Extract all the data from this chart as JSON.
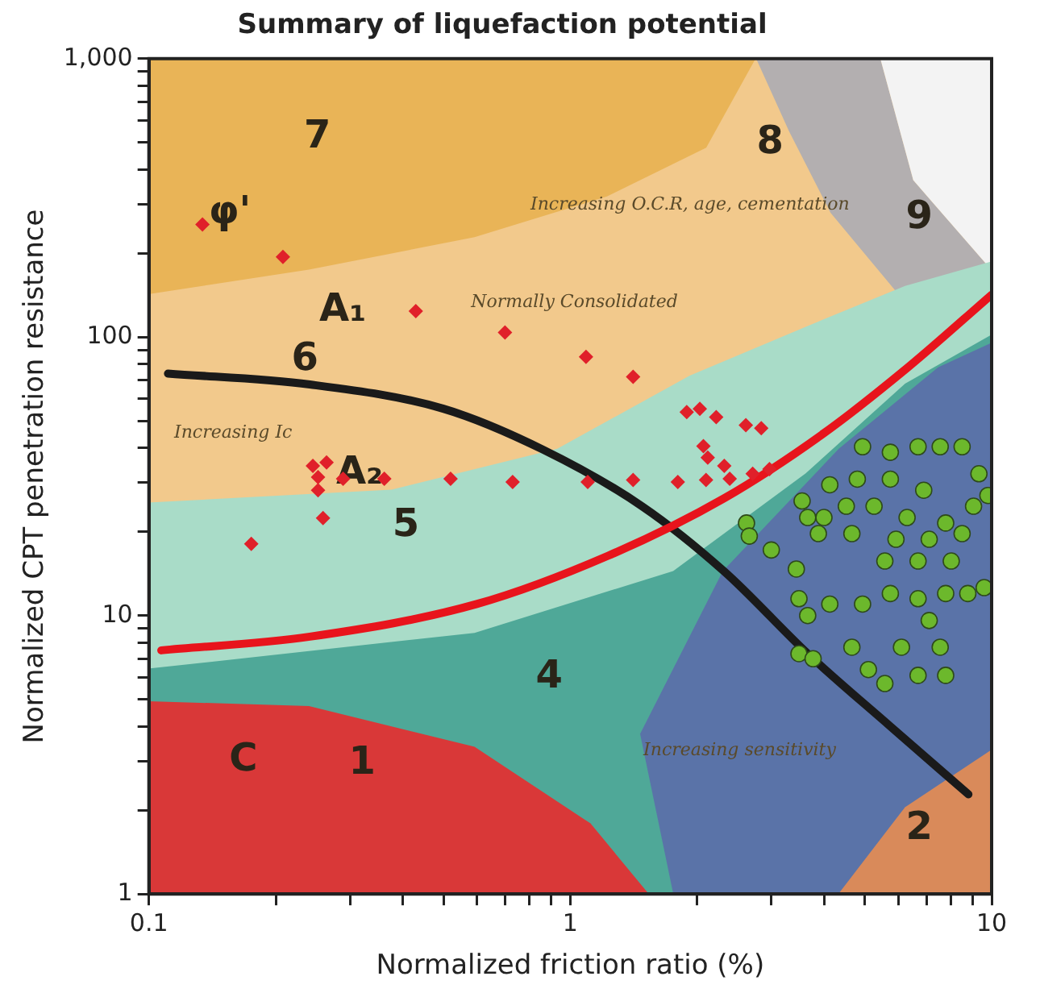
{
  "chart_data": {
    "type": "scatter",
    "title": "Summary of liquefaction potential",
    "xlabel": "Normalized friction ratio (%)",
    "ylabel": "Normalized CPT penetration resistance",
    "log": "xy",
    "xlim": [
      0.1,
      10
    ],
    "ylim": [
      1,
      1000
    ],
    "xticks": [
      0.1,
      {
        "value": 0.2,
        "label": null
      },
      {
        "value": 0.3,
        "label": null
      },
      {
        "value": 0.4,
        "label": null
      },
      {
        "value": 0.5,
        "label": null
      },
      {
        "value": 0.6,
        "label": null
      },
      {
        "value": 0.7,
        "label": null
      },
      {
        "value": 0.8,
        "label": null
      },
      {
        "value": 0.9,
        "label": null
      },
      1,
      {
        "value": 2,
        "label": null
      },
      {
        "value": 3,
        "label": null
      },
      {
        "value": 4,
        "label": null
      },
      {
        "value": 5,
        "label": null
      },
      {
        "value": 6,
        "label": null
      },
      {
        "value": 7,
        "label": null
      },
      {
        "value": 8,
        "label": null
      },
      {
        "value": 9,
        "label": null
      },
      10
    ],
    "yticks": [
      1,
      {
        "value": 2,
        "label": null
      },
      {
        "value": 3,
        "label": null
      },
      {
        "value": 4,
        "label": null
      },
      {
        "value": 5,
        "label": null
      },
      {
        "value": 6,
        "label": null
      },
      {
        "value": 7,
        "label": null
      },
      {
        "value": 8,
        "label": null
      },
      {
        "value": 9,
        "label": null
      },
      10,
      {
        "value": 20,
        "label": null
      },
      {
        "value": 30,
        "label": null
      },
      {
        "value": 40,
        "label": null
      },
      {
        "value": 50,
        "label": null
      },
      {
        "value": 60,
        "label": null
      },
      {
        "value": 70,
        "label": null
      },
      {
        "value": 80,
        "label": null
      },
      {
        "value": 90,
        "label": null
      },
      100,
      {
        "value": 200,
        "label": null
      },
      {
        "value": 300,
        "label": null
      },
      {
        "value": 400,
        "label": null
      },
      {
        "value": 500,
        "label": null
      },
      {
        "value": 600,
        "label": null
      },
      {
        "value": 700,
        "label": null
      },
      {
        "value": 800,
        "label": null
      },
      {
        "value": 900,
        "label": null
      },
      {
        "value": 1000,
        "label": "1,000"
      }
    ],
    "grid": false,
    "legend": false,
    "series": [
      {
        "type": "line",
        "color": "#1a1a1a",
        "marker": "none",
        "line_style": "solid",
        "x": [
          0.111,
          0.241,
          0.5,
          0.86,
          1.48,
          2.32,
          3.66,
          5.75,
          8.81
        ],
        "values": [
          74,
          67.6,
          55.3,
          39.5,
          24.7,
          14.4,
          7.3,
          4.0,
          2.28
        ]
      },
      {
        "type": "scatter",
        "color": "#6cb82c",
        "marker": "circle",
        "x": [
          2.62,
          2.66,
          3.0,
          3.44,
          3.49,
          3.66,
          3.49,
          3.77,
          5.1,
          5.58,
          6.69,
          7.78,
          7.11,
          7.55,
          8.78,
          9.6,
          8.02,
          6.69,
          5.58,
          4.66,
          3.88,
          3.55,
          4.13,
          4.94,
          5.75,
          6.69,
          7.55,
          8.51,
          9.33,
          9.8,
          9.06,
          7.78,
          6.3,
          5.26,
          4.52,
          4.0,
          3.66,
          6.9,
          5.75,
          4.8,
          8.51,
          7.11,
          5.93,
          4.13,
          4.94,
          5.75,
          6.69,
          7.78,
          4.66,
          6.11
        ],
        "values": [
          21.5,
          19.3,
          17.2,
          14.7,
          11.5,
          10.0,
          7.3,
          7.0,
          6.4,
          5.7,
          6.1,
          6.1,
          9.6,
          7.7,
          12.0,
          12.6,
          15.7,
          15.7,
          15.7,
          19.7,
          19.7,
          25.8,
          29.5,
          40.4,
          38.6,
          40.4,
          40.4,
          40.4,
          32.3,
          27.0,
          24.7,
          21.5,
          22.5,
          24.7,
          24.7,
          22.5,
          22.5,
          28.2,
          30.9,
          30.9,
          19.7,
          18.8,
          18.8,
          11.0,
          11.0,
          12.0,
          11.5,
          12.0,
          7.7,
          7.7
        ]
      },
      {
        "type": "line",
        "color": "#e8141c",
        "marker": "none",
        "line_style": "solid",
        "x": [
          0.107,
          0.241,
          0.6,
          1.23,
          2.32,
          4.0,
          6.3,
          10
        ],
        "values": [
          7.5,
          8.4,
          11.0,
          16.4,
          26.4,
          45.2,
          77.4,
          142
        ]
      },
      {
        "type": "scatter",
        "color": "#e0202a",
        "marker": "diamond",
        "x": [
          0.134,
          0.208,
          0.43,
          0.7,
          0.245,
          0.264,
          0.252,
          0.289,
          0.252,
          0.362,
          0.52,
          0.259,
          0.175,
          1.09,
          1.41,
          1.89,
          2.03,
          2.22,
          2.61,
          2.84,
          2.07,
          2.12,
          2.32,
          2.39,
          0.73,
          1.1,
          1.41,
          1.8,
          2.1,
          2.71,
          2.97
        ],
        "values": [
          254,
          194,
          124,
          104,
          34.5,
          35.5,
          31.4,
          31,
          28.2,
          31,
          31,
          22.4,
          18.1,
          85,
          72,
          53.8,
          55.3,
          51.6,
          48.3,
          47.1,
          40.6,
          36.9,
          34.5,
          31,
          30.2,
          30.2,
          30.7,
          30.2,
          30.7,
          32.3,
          33.6
        ]
      }
    ],
    "annotations": [
      "7",
      "8",
      "9",
      "6",
      "5",
      "4",
      "2",
      "1",
      "A₁",
      "A₂",
      "C",
      "φ'",
      "Normally Consolidated",
      "Increasing O.C.R, age, cementation",
      "Increasing Ic",
      "Increasing sensitivity"
    ]
  }
}
